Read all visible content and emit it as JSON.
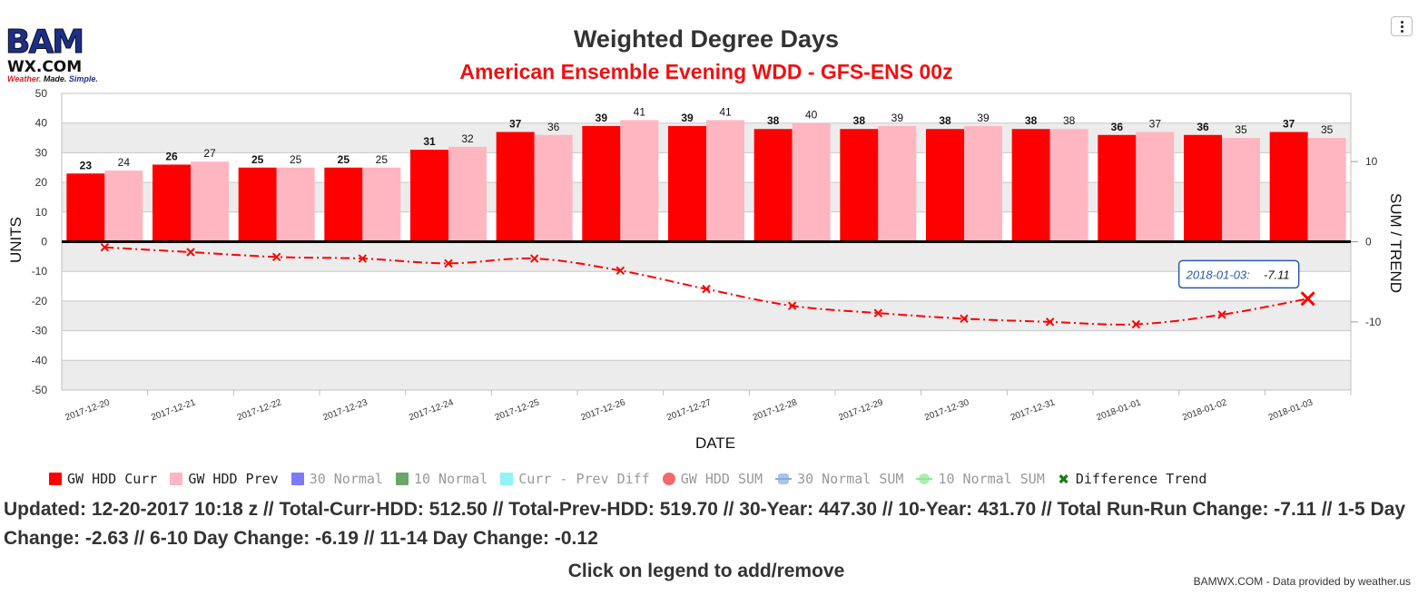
{
  "logo": {
    "big": "BAM",
    "sub": "WX.COM",
    "tag1": "Weather.",
    "tag2": " Made.",
    "tag3": " Simple."
  },
  "menu_icon": "context-menu-icon",
  "title": "Weighted Degree Days",
  "subtitle": "American Ensemble Evening WDD - GFS-ENS 00z",
  "legend": [
    {
      "label": "GW HDD Curr",
      "color": "#ff0000",
      "symbol": "square",
      "active": true
    },
    {
      "label": "GW HDD Prev",
      "color": "#ffb6c1",
      "symbol": "square",
      "active": true
    },
    {
      "label": "30 Normal",
      "color": "#7b7bff",
      "symbol": "square",
      "active": false
    },
    {
      "label": "10 Normal",
      "color": "#6aa66a",
      "symbol": "square",
      "active": false
    },
    {
      "label": "Curr - Prev Diff",
      "color": "#8ff4f4",
      "symbol": "square",
      "active": false
    },
    {
      "label": "GW HDD SUM",
      "color": "#f26a6a",
      "symbol": "circle",
      "active": false
    },
    {
      "label": "30 Normal SUM",
      "color": "#8aa8e6",
      "symbol": "line",
      "active": false
    },
    {
      "label": "10 Normal SUM",
      "color": "#8ee68e",
      "symbol": "linecirc",
      "active": false
    },
    {
      "label": "Difference Trend",
      "color": "#1a7a1a",
      "symbol": "cross",
      "active": true
    }
  ],
  "info_text": "Updated: 12-20-2017 10:18 z // Total-Curr-HDD: 512.50 // Total-Prev-HDD: 519.70 // 30-Year: 447.30 // 10-Year: 431.70 // Total Run-Run Change: -7.11 // 1-5 Day Change: -2.63 // 6-10 Day Change: -6.19 // 11-14 Day Change: -0.12",
  "click_note": "Click on legend to add/remove",
  "credit": "BAMWX.COM - Data provided by weather.us",
  "chart_data": {
    "type": "bar",
    "categories": [
      "2017-12-20",
      "2017-12-21",
      "2017-12-22",
      "2017-12-23",
      "2017-12-24",
      "2017-12-25",
      "2017-12-26",
      "2017-12-27",
      "2017-12-28",
      "2017-12-29",
      "2017-12-30",
      "2017-12-31",
      "2018-01-01",
      "2018-01-02",
      "2018-01-03"
    ],
    "series": [
      {
        "name": "GW HDD Curr",
        "color": "#ff0000",
        "values": [
          23,
          26,
          25,
          25,
          31,
          37,
          39,
          39,
          38,
          38,
          38,
          38,
          36,
          36,
          37
        ]
      },
      {
        "name": "GW HDD Prev",
        "color": "#ffb6c1",
        "values": [
          24,
          27,
          25,
          25,
          32,
          36,
          41,
          41,
          40,
          39,
          39,
          38,
          37,
          35,
          35
        ]
      }
    ],
    "line_series": {
      "name": "Difference Trend",
      "color": "#ff0000",
      "axis": "right",
      "values": [
        -0.7,
        -1.3,
        -1.9,
        -2.1,
        -2.7,
        -2.1,
        -3.6,
        -5.9,
        -8.0,
        -8.9,
        -9.6,
        -10.0,
        -10.3,
        -9.1,
        -7.11
      ]
    },
    "xlabel": "DATE",
    "ylabel": "UNITS",
    "y2label": "SUM / TREND",
    "ylim": [
      -50,
      50
    ],
    "yticks": [
      50,
      40,
      30,
      20,
      10,
      0,
      -10,
      -20,
      -30,
      -40,
      -50
    ],
    "y2lim": [
      -18.5,
      18.5
    ],
    "y2ticks": [
      10,
      0,
      -10
    ],
    "grid": true,
    "tooltip": {
      "date": "2018-01-03:",
      "value": "-7.11"
    }
  }
}
